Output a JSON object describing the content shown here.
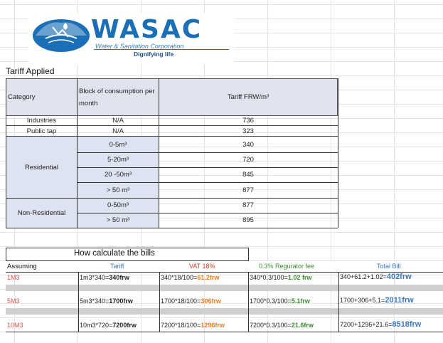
{
  "logo": {
    "title": "WASAC",
    "subtitle": "Water & Sanitation Corporation",
    "tagline": "Dignifying life",
    "colors": {
      "brand": "#1b6fb6"
    }
  },
  "tariff": {
    "heading": "Tariff Applied",
    "headers": {
      "category": "Category",
      "block": "Block of consumption per month",
      "tariff": "Tariff FRW/m³"
    },
    "rows": [
      {
        "category": "Industries",
        "block": "N/A",
        "tariff": "736"
      },
      {
        "category": "Public tap",
        "block": "N/A",
        "tariff": "323"
      },
      {
        "category": "Residential",
        "block": "0-5m³",
        "tariff": "340"
      },
      {
        "category": "",
        "block": "5-20m³",
        "tariff": "720"
      },
      {
        "category": "",
        "block": "20 -50m³",
        "tariff": "845"
      },
      {
        "category": "",
        "block": "> 50 m³",
        "tariff": "877"
      },
      {
        "category": "Non-Residential",
        "block": "0-50m³",
        "tariff": "877"
      },
      {
        "category": "",
        "block": "> 50 m³",
        "tariff": "895"
      }
    ]
  },
  "calc": {
    "heading": "How calculate the bills",
    "headers": {
      "assuming": "Assuming",
      "tariff": "Tariff",
      "vat": "VAT 18%",
      "fee": "0.3% Regurator fee",
      "total": "Total Bill"
    },
    "rows": [
      {
        "assuming": "1M3",
        "tariff_formula": "1m3*340=",
        "tariff_result": "340frw",
        "vat_formula": "340*18/100=",
        "vat_result": "61.2frw",
        "fee_formula": "340*0.3/100=",
        "fee_result": "1.02 frw",
        "total_formula": "340+61.2+1.02=",
        "total_result": "402frw"
      },
      {
        "assuming": "5M3",
        "tariff_formula": "5m3*340=",
        "tariff_result": "1700frw",
        "vat_formula": "1700*18/100=",
        "vat_result": "306frw",
        "fee_formula": "1700*0.3/100=",
        "fee_result": "5.1frw",
        "total_formula": "1700+306+5.1=",
        "total_result": "2011frw"
      },
      {
        "assuming": "10M3",
        "tariff_formula": "10m3*720=",
        "tariff_result": "7200frw",
        "vat_formula": "7200*18/100=",
        "vat_result": "1296frw",
        "fee_formula": "7200*0.3/100=",
        "fee_result": "21.6frw",
        "total_formula": "7200+1296+21.6=",
        "total_result": "8518frw"
      }
    ],
    "colors": {
      "assuming": "#d9534f",
      "tariff": "#3a78c2",
      "vat": "#d9341f",
      "fee": "#3d8b2f",
      "total": "#3a78c2",
      "vat_result": "#e67e22",
      "fee_result": "#3d8b2f",
      "total_result": "#3a78c2"
    }
  }
}
